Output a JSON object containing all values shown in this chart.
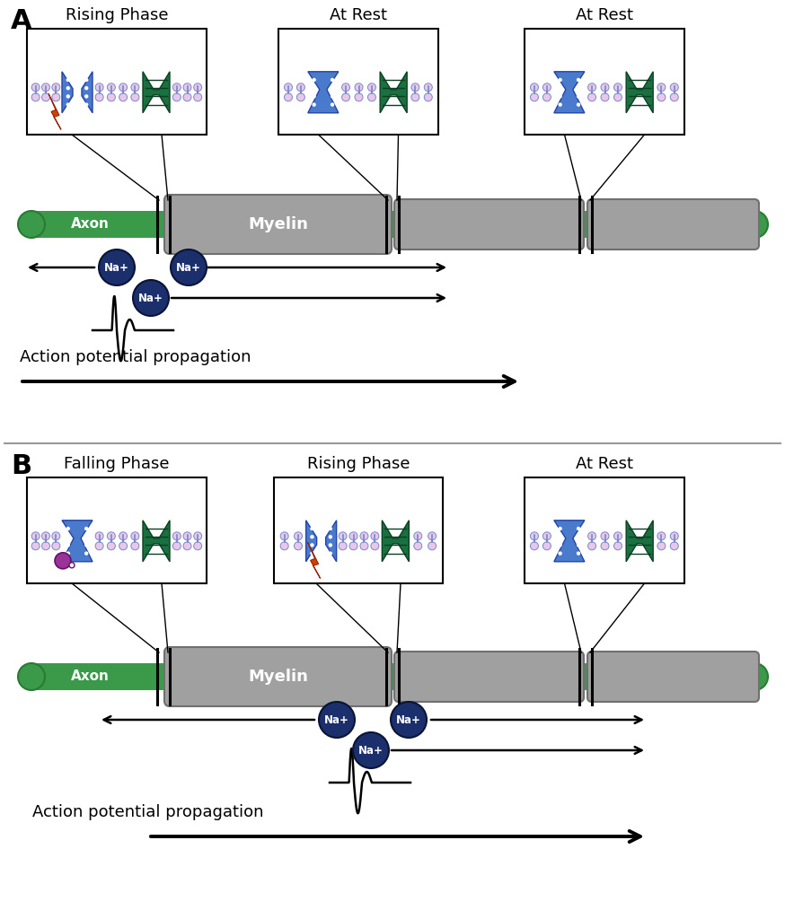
{
  "background_color": "#ffffff",
  "panel_A_label": "A",
  "panel_B_label": "B",
  "panel_A_box_labels": [
    "Rising Phase",
    "At Rest",
    "At Rest"
  ],
  "panel_B_box_labels": [
    "Falling Phase",
    "Rising Phase",
    "At Rest"
  ],
  "axon_color": "#3a9a4a",
  "axon_outline": "#2a7a35",
  "axon_label": "Axon",
  "myelin_color": "#a0a0a0",
  "myelin_outline": "#707070",
  "myelin_label": "Myelin",
  "na_color": "#1a2f6b",
  "na_text_color": "#ffffff",
  "blue_channel_color": "#4a7acc",
  "blue_channel_outline": "#2244aa",
  "green_channel_color": "#1a7040",
  "green_channel_outline": "#0a4020",
  "membrane_head_color": "#e8c8e8",
  "membrane_line_color": "#7788cc",
  "orange_color": "#cc4400",
  "purple_ball_color": "#993399",
  "action_potential_text": "Action potential propagation",
  "box_outline": "#000000",
  "divider_color": "#999999"
}
